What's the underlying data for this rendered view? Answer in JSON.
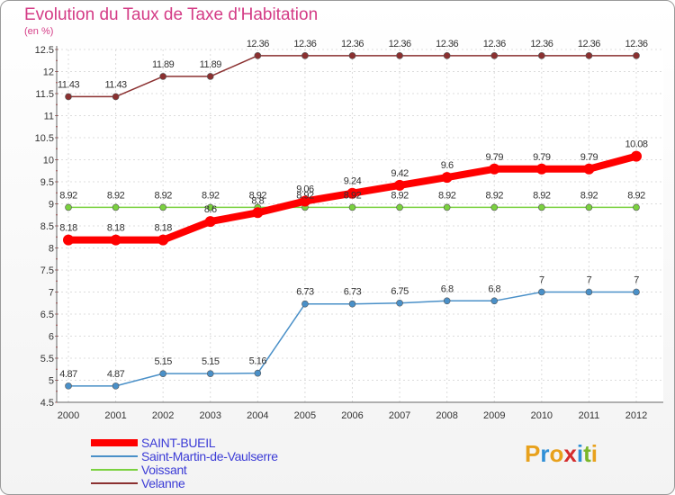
{
  "title": "Evolution du Taux de Taxe d'Habitation",
  "unit": "(en %)",
  "logo": [
    "P",
    "r",
    "o",
    "x",
    "i",
    "t",
    "i"
  ],
  "logo_colors": [
    "#e8a11c",
    "#2f8fd6",
    "#e8a11c",
    "#d42c2c",
    "#2f8fd6",
    "#7ab628",
    "#e8a11c"
  ],
  "chart_data": {
    "type": "line",
    "x": [
      2000,
      2001,
      2002,
      2003,
      2004,
      2005,
      2006,
      2007,
      2008,
      2009,
      2010,
      2011,
      2012
    ],
    "ylim": [
      4.5,
      12.5
    ],
    "yticks": [
      "4.5",
      "5",
      "5.5",
      "6",
      "6.5",
      "7",
      "7.5",
      "8",
      "8.5",
      "9",
      "9.5",
      "10",
      "10.5",
      "11",
      "11.5",
      "12",
      "12.5"
    ],
    "grid": true,
    "legend_position": "bottom-left",
    "series": [
      {
        "name": "SAINT-BUEIL",
        "color": "#ff0000",
        "values": [
          8.18,
          8.18,
          8.18,
          8.6,
          8.8,
          9.06,
          9.24,
          9.42,
          9.6,
          9.79,
          9.79,
          9.79,
          10.08
        ],
        "labels": [
          "8.18",
          "8.18",
          "8.18",
          "8.6",
          "8.8",
          "9.06",
          "9.24",
          "9.42",
          "9.6",
          "9.79",
          "9.79",
          "9.79",
          "10.08"
        ]
      },
      {
        "name": "Saint-Martin-de-Vaulserre",
        "color": "#4a90c8",
        "values": [
          4.87,
          4.87,
          5.15,
          5.15,
          5.16,
          6.73,
          6.73,
          6.75,
          6.8,
          6.8,
          7,
          7,
          7
        ],
        "labels": [
          "4.87",
          "4.87",
          "5.15",
          "5.15",
          "5.16",
          "6.73",
          "6.73",
          "6.75",
          "6.8",
          "6.8",
          "7",
          "7",
          "7"
        ]
      },
      {
        "name": "Voissant",
        "color": "#7ad13f",
        "values": [
          8.92,
          8.92,
          8.92,
          8.92,
          8.92,
          8.92,
          8.92,
          8.92,
          8.92,
          8.92,
          8.92,
          8.92,
          8.92
        ],
        "labels": [
          "8.92",
          "8.92",
          "8.92",
          "8.92",
          "8.92",
          "8.92",
          "8.92",
          "8.92",
          "8.92",
          "8.92",
          "8.92",
          "8.92",
          "8.92"
        ]
      },
      {
        "name": "Velanne",
        "color": "#8b3030",
        "values": [
          11.43,
          11.43,
          11.89,
          11.89,
          12.36,
          12.36,
          12.36,
          12.36,
          12.36,
          12.36,
          12.36,
          12.36,
          12.36
        ],
        "labels": [
          "11.43",
          "11.43",
          "11.89",
          "11.89",
          "12.36",
          "12.36",
          "12.36",
          "12.36",
          "12.36",
          "12.36",
          "12.36",
          "12.36",
          "12.36"
        ]
      }
    ]
  }
}
